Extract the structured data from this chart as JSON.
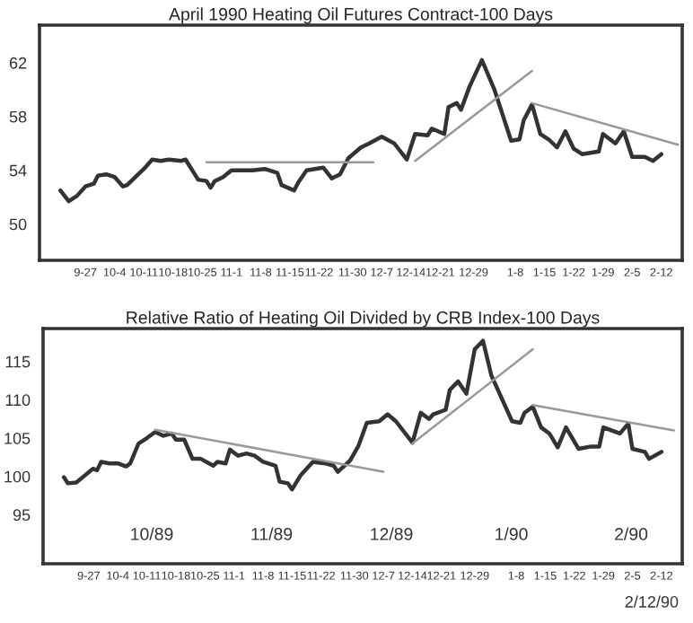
{
  "chart_data": [
    {
      "type": "line",
      "title": "April 1990 Heating Oil Futures Contract-100 Days",
      "xlim": [
        "1989-09-16",
        "1990-02-17"
      ],
      "ylim": [
        47.3,
        64.8
      ],
      "yticks": [
        50,
        54,
        58,
        62
      ],
      "xticks": [
        {
          "value": "1989-09-27",
          "label": "9-27"
        },
        {
          "value": "1989-10-04",
          "label": "10-4"
        },
        {
          "value": "1989-10-11",
          "label": "10-11"
        },
        {
          "value": "1989-10-18",
          "label": "10-18"
        },
        {
          "value": "1989-10-25",
          "label": "10-25"
        },
        {
          "value": "1989-11-01",
          "label": "11-1"
        },
        {
          "value": "1989-11-08",
          "label": "11-8"
        },
        {
          "value": "1989-11-15",
          "label": "11-15"
        },
        {
          "value": "1989-11-22",
          "label": "11-22"
        },
        {
          "value": "1989-11-30",
          "label": "11-30"
        },
        {
          "value": "1989-12-07",
          "label": "12-7"
        },
        {
          "value": "1989-12-14",
          "label": "12-14"
        },
        {
          "value": "1989-12-21",
          "label": "12-21"
        },
        {
          "value": "1989-12-29",
          "label": "12-29"
        },
        {
          "value": "1990-01-08",
          "label": "1-8"
        },
        {
          "value": "1990-01-15",
          "label": "1-15"
        },
        {
          "value": "1990-01-22",
          "label": "1-22"
        },
        {
          "value": "1990-01-29",
          "label": "1-29"
        },
        {
          "value": "1990-02-05",
          "label": "2-5"
        },
        {
          "value": "1990-02-12",
          "label": "2-12"
        }
      ],
      "series": [
        {
          "color": "#333333",
          "x": [
            "1989-09-21",
            "1989-09-23",
            "1989-09-25",
            "1989-09-27",
            "1989-09-29",
            "1989-09-30",
            "1989-10-02",
            "1989-10-04",
            "1989-10-06",
            "1989-10-07",
            "1989-10-09",
            "1989-10-11",
            "1989-10-13",
            "1989-10-15",
            "1989-10-17",
            "1989-10-20",
            "1989-10-21",
            "1989-10-23",
            "1989-10-24",
            "1989-10-26",
            "1989-10-27",
            "1989-10-28",
            "1989-10-30",
            "1989-11-01",
            "1989-11-03",
            "1989-11-06",
            "1989-11-09",
            "1989-11-12",
            "1989-11-13",
            "1989-11-16",
            "1989-11-17",
            "1989-11-19",
            "1989-11-21",
            "1989-11-23",
            "1989-11-25",
            "1989-11-27",
            "1989-11-29",
            "1989-12-02",
            "1989-12-04",
            "1989-12-07",
            "1989-12-10",
            "1989-12-13",
            "1989-12-15",
            "1989-12-18",
            "1989-12-19",
            "1989-12-22",
            "1989-12-23",
            "1989-12-25",
            "1989-12-26",
            "1989-12-28",
            "1989-12-31",
            "1990-01-03",
            "1990-01-07",
            "1990-01-09",
            "1990-01-10",
            "1990-01-12",
            "1990-01-14",
            "1990-01-16",
            "1990-01-18",
            "1990-01-20",
            "1990-01-22",
            "1990-01-24",
            "1990-01-28",
            "1990-01-29",
            "1990-02-01",
            "1990-02-03",
            "1990-02-05",
            "1990-02-08",
            "1990-02-10",
            "1990-02-12"
          ],
          "values": [
            52.5,
            51.7,
            52.1,
            52.8,
            53.0,
            53.6,
            53.7,
            53.5,
            52.8,
            52.9,
            53.5,
            54.1,
            54.8,
            54.7,
            54.8,
            54.7,
            54.8,
            53.8,
            53.3,
            53.2,
            52.7,
            53.2,
            53.5,
            54.0,
            54.0,
            54.0,
            54.1,
            53.8,
            52.9,
            52.5,
            53.1,
            54.0,
            54.1,
            54.2,
            53.4,
            53.7,
            54.9,
            55.7,
            56.0,
            56.5,
            56.0,
            54.8,
            56.7,
            56.6,
            57.1,
            56.7,
            58.7,
            59.0,
            58.5,
            60.2,
            62.2,
            60.0,
            56.2,
            56.3,
            57.7,
            58.9,
            56.7,
            56.3,
            55.7,
            56.9,
            55.6,
            55.2,
            55.4,
            56.7,
            56.0,
            56.9,
            55.0,
            55.0,
            54.7,
            55.2
          ]
        },
        {
          "color": "#999999",
          "x": [
            "1989-10-26",
            "1989-12-05"
          ],
          "values": [
            54.6,
            54.6
          ]
        },
        {
          "color": "#999999",
          "x": [
            "1989-12-15",
            "1990-01-12"
          ],
          "values": [
            54.7,
            61.4
          ]
        },
        {
          "color": "#999999",
          "x": [
            "1990-01-12",
            "1990-02-16"
          ],
          "values": [
            59.0,
            55.9
          ]
        }
      ]
    },
    {
      "type": "line",
      "title": "Relative Ratio of Heating Oil Divided by CRB Index-100 Days",
      "xlim": [
        "1989-09-16",
        "1990-02-17"
      ],
      "ylim": [
        88.6,
        119.3
      ],
      "yticks": [
        95,
        100,
        105,
        110,
        115
      ],
      "xticks": [
        {
          "value": "1989-09-27",
          "label": "9-27"
        },
        {
          "value": "1989-10-04",
          "label": "10-4"
        },
        {
          "value": "1989-10-11",
          "label": "10-11"
        },
        {
          "value": "1989-10-18",
          "label": "10-18"
        },
        {
          "value": "1989-10-25",
          "label": "10-25"
        },
        {
          "value": "1989-11-01",
          "label": "11-1"
        },
        {
          "value": "1989-11-08",
          "label": "11-8"
        },
        {
          "value": "1989-11-15",
          "label": "11-15"
        },
        {
          "value": "1989-11-22",
          "label": "11-22"
        },
        {
          "value": "1989-11-30",
          "label": "11-30"
        },
        {
          "value": "1989-12-07",
          "label": "12-7"
        },
        {
          "value": "1989-12-14",
          "label": "12-14"
        },
        {
          "value": "1989-12-21",
          "label": "12-21"
        },
        {
          "value": "1989-12-29",
          "label": "12-29"
        },
        {
          "value": "1990-01-08",
          "label": "1-8"
        },
        {
          "value": "1990-01-15",
          "label": "1-15"
        },
        {
          "value": "1990-01-22",
          "label": "1-22"
        },
        {
          "value": "1990-01-29",
          "label": "1-29"
        },
        {
          "value": "1990-02-05",
          "label": "2-5"
        },
        {
          "value": "1990-02-12",
          "label": "2-12"
        }
      ],
      "annotations": [
        "10/89",
        "11/89",
        "12/89",
        "1/90",
        "2/90",
        "2/12/90"
      ],
      "series": [
        {
          "color": "#333333",
          "x": [
            "1989-09-21",
            "1989-09-22",
            "1989-09-24",
            "1989-09-26",
            "1989-09-28",
            "1989-09-29",
            "1989-09-30",
            "1989-10-02",
            "1989-10-04",
            "1989-10-06",
            "1989-10-07",
            "1989-10-09",
            "1989-10-11",
            "1989-10-13",
            "1989-10-15",
            "1989-10-17",
            "1989-10-18",
            "1989-10-20",
            "1989-10-22",
            "1989-10-24",
            "1989-10-27",
            "1989-10-28",
            "1989-10-30",
            "1989-10-31",
            "1989-11-02",
            "1989-11-04",
            "1989-11-06",
            "1989-11-08",
            "1989-11-11",
            "1989-11-12",
            "1989-11-14",
            "1989-11-15",
            "1989-11-17",
            "1989-11-20",
            "1989-11-23",
            "1989-11-25",
            "1989-11-26",
            "1989-11-29",
            "1989-12-01",
            "1989-12-03",
            "1989-12-06",
            "1989-12-08",
            "1989-12-10",
            "1989-12-14",
            "1989-12-16",
            "1989-12-18",
            "1989-12-19",
            "1989-12-22",
            "1989-12-23",
            "1989-12-25",
            "1989-12-27",
            "1989-12-29",
            "1989-12-31",
            "1990-01-02",
            "1990-01-07",
            "1990-01-09",
            "1990-01-10",
            "1990-01-12",
            "1990-01-14",
            "1990-01-16",
            "1990-01-18",
            "1990-01-20",
            "1990-01-23",
            "1990-01-26",
            "1990-01-28",
            "1990-01-29",
            "1990-02-02",
            "1990-02-04",
            "1990-02-05",
            "1990-02-08",
            "1990-02-09",
            "1990-02-12"
          ],
          "values": [
            99.9,
            99.1,
            99.2,
            100.1,
            101.0,
            100.8,
            101.9,
            101.7,
            101.7,
            101.3,
            101.7,
            104.3,
            105.0,
            105.8,
            105.3,
            105.6,
            104.8,
            104.8,
            102.3,
            102.3,
            101.4,
            101.9,
            101.7,
            103.5,
            102.7,
            103.0,
            102.7,
            101.9,
            101.4,
            99.3,
            99.1,
            98.3,
            100.1,
            101.9,
            101.7,
            101.4,
            100.6,
            102.1,
            104.0,
            107.0,
            107.2,
            108.1,
            107.2,
            104.4,
            108.3,
            107.5,
            108.1,
            108.7,
            111.3,
            112.4,
            110.8,
            116.6,
            117.7,
            113.2,
            107.2,
            107.0,
            108.3,
            109.1,
            106.4,
            105.6,
            103.8,
            106.4,
            103.6,
            103.9,
            103.9,
            106.4,
            105.6,
            106.9,
            103.6,
            103.2,
            102.3,
            103.2
          ]
        },
        {
          "color": "#999999",
          "x": [
            "1989-10-13",
            "1989-12-07"
          ],
          "values": [
            106.1,
            100.6
          ]
        },
        {
          "color": "#999999",
          "x": [
            "1989-12-14",
            "1990-01-12"
          ],
          "values": [
            104.3,
            116.6
          ]
        },
        {
          "color": "#999999",
          "x": [
            "1990-01-12",
            "1990-02-15"
          ],
          "values": [
            109.3,
            106.0
          ]
        }
      ]
    }
  ]
}
